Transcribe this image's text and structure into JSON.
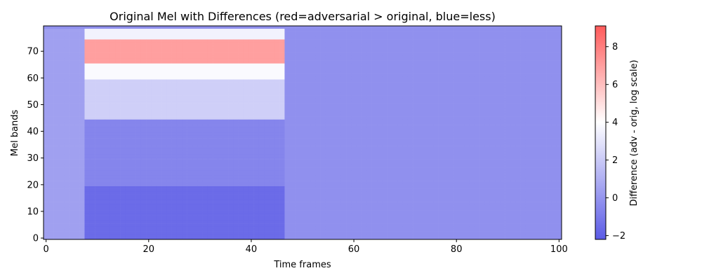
{
  "chart_data": {
    "type": "heatmap",
    "title": "Original Mel with Differences (red=adversarial > original, blue=less)",
    "xlabel": "Time frames",
    "ylabel": "Mel bands",
    "xlim": [
      -0.5,
      100.5
    ],
    "ylim": [
      -0.5,
      79.5
    ],
    "x_ticks": [
      0,
      20,
      40,
      60,
      80,
      100
    ],
    "y_ticks": [
      0,
      10,
      20,
      30,
      40,
      50,
      60,
      70
    ],
    "n_time_frames": 101,
    "n_mel_bands": 80,
    "grid": false,
    "colorbar": {
      "label": "Difference (adv - orig, log scale)",
      "range": [
        -2.2,
        9.1
      ],
      "ticks": [
        -2,
        0,
        2,
        4,
        6,
        8
      ],
      "colormap": "bwr",
      "alpha": 0.6,
      "low_color": "#5b5be6",
      "mid_color": "#ffffff",
      "high_color": "#ff5b5b"
    },
    "regions": [
      {
        "frames": [
          0,
          8
        ],
        "bands": [
          0,
          79
        ],
        "difference": 0.4
      },
      {
        "frames": [
          8,
          47
        ],
        "bands": [
          0,
          20
        ],
        "difference": -1.6
      },
      {
        "frames": [
          8,
          47
        ],
        "bands": [
          20,
          45
        ],
        "difference": -0.6
      },
      {
        "frames": [
          8,
          47
        ],
        "bands": [
          45,
          60
        ],
        "difference": 2.2
      },
      {
        "frames": [
          8,
          47
        ],
        "bands": [
          60,
          66
        ],
        "difference": 3.8
      },
      {
        "frames": [
          8,
          47
        ],
        "bands": [
          66,
          75
        ],
        "difference": 7.0
      },
      {
        "frames": [
          8,
          47
        ],
        "bands": [
          75,
          79
        ],
        "difference": 3.5
      },
      {
        "frames": [
          47,
          100
        ],
        "bands": [
          0,
          79
        ],
        "difference": -0.2
      }
    ]
  }
}
